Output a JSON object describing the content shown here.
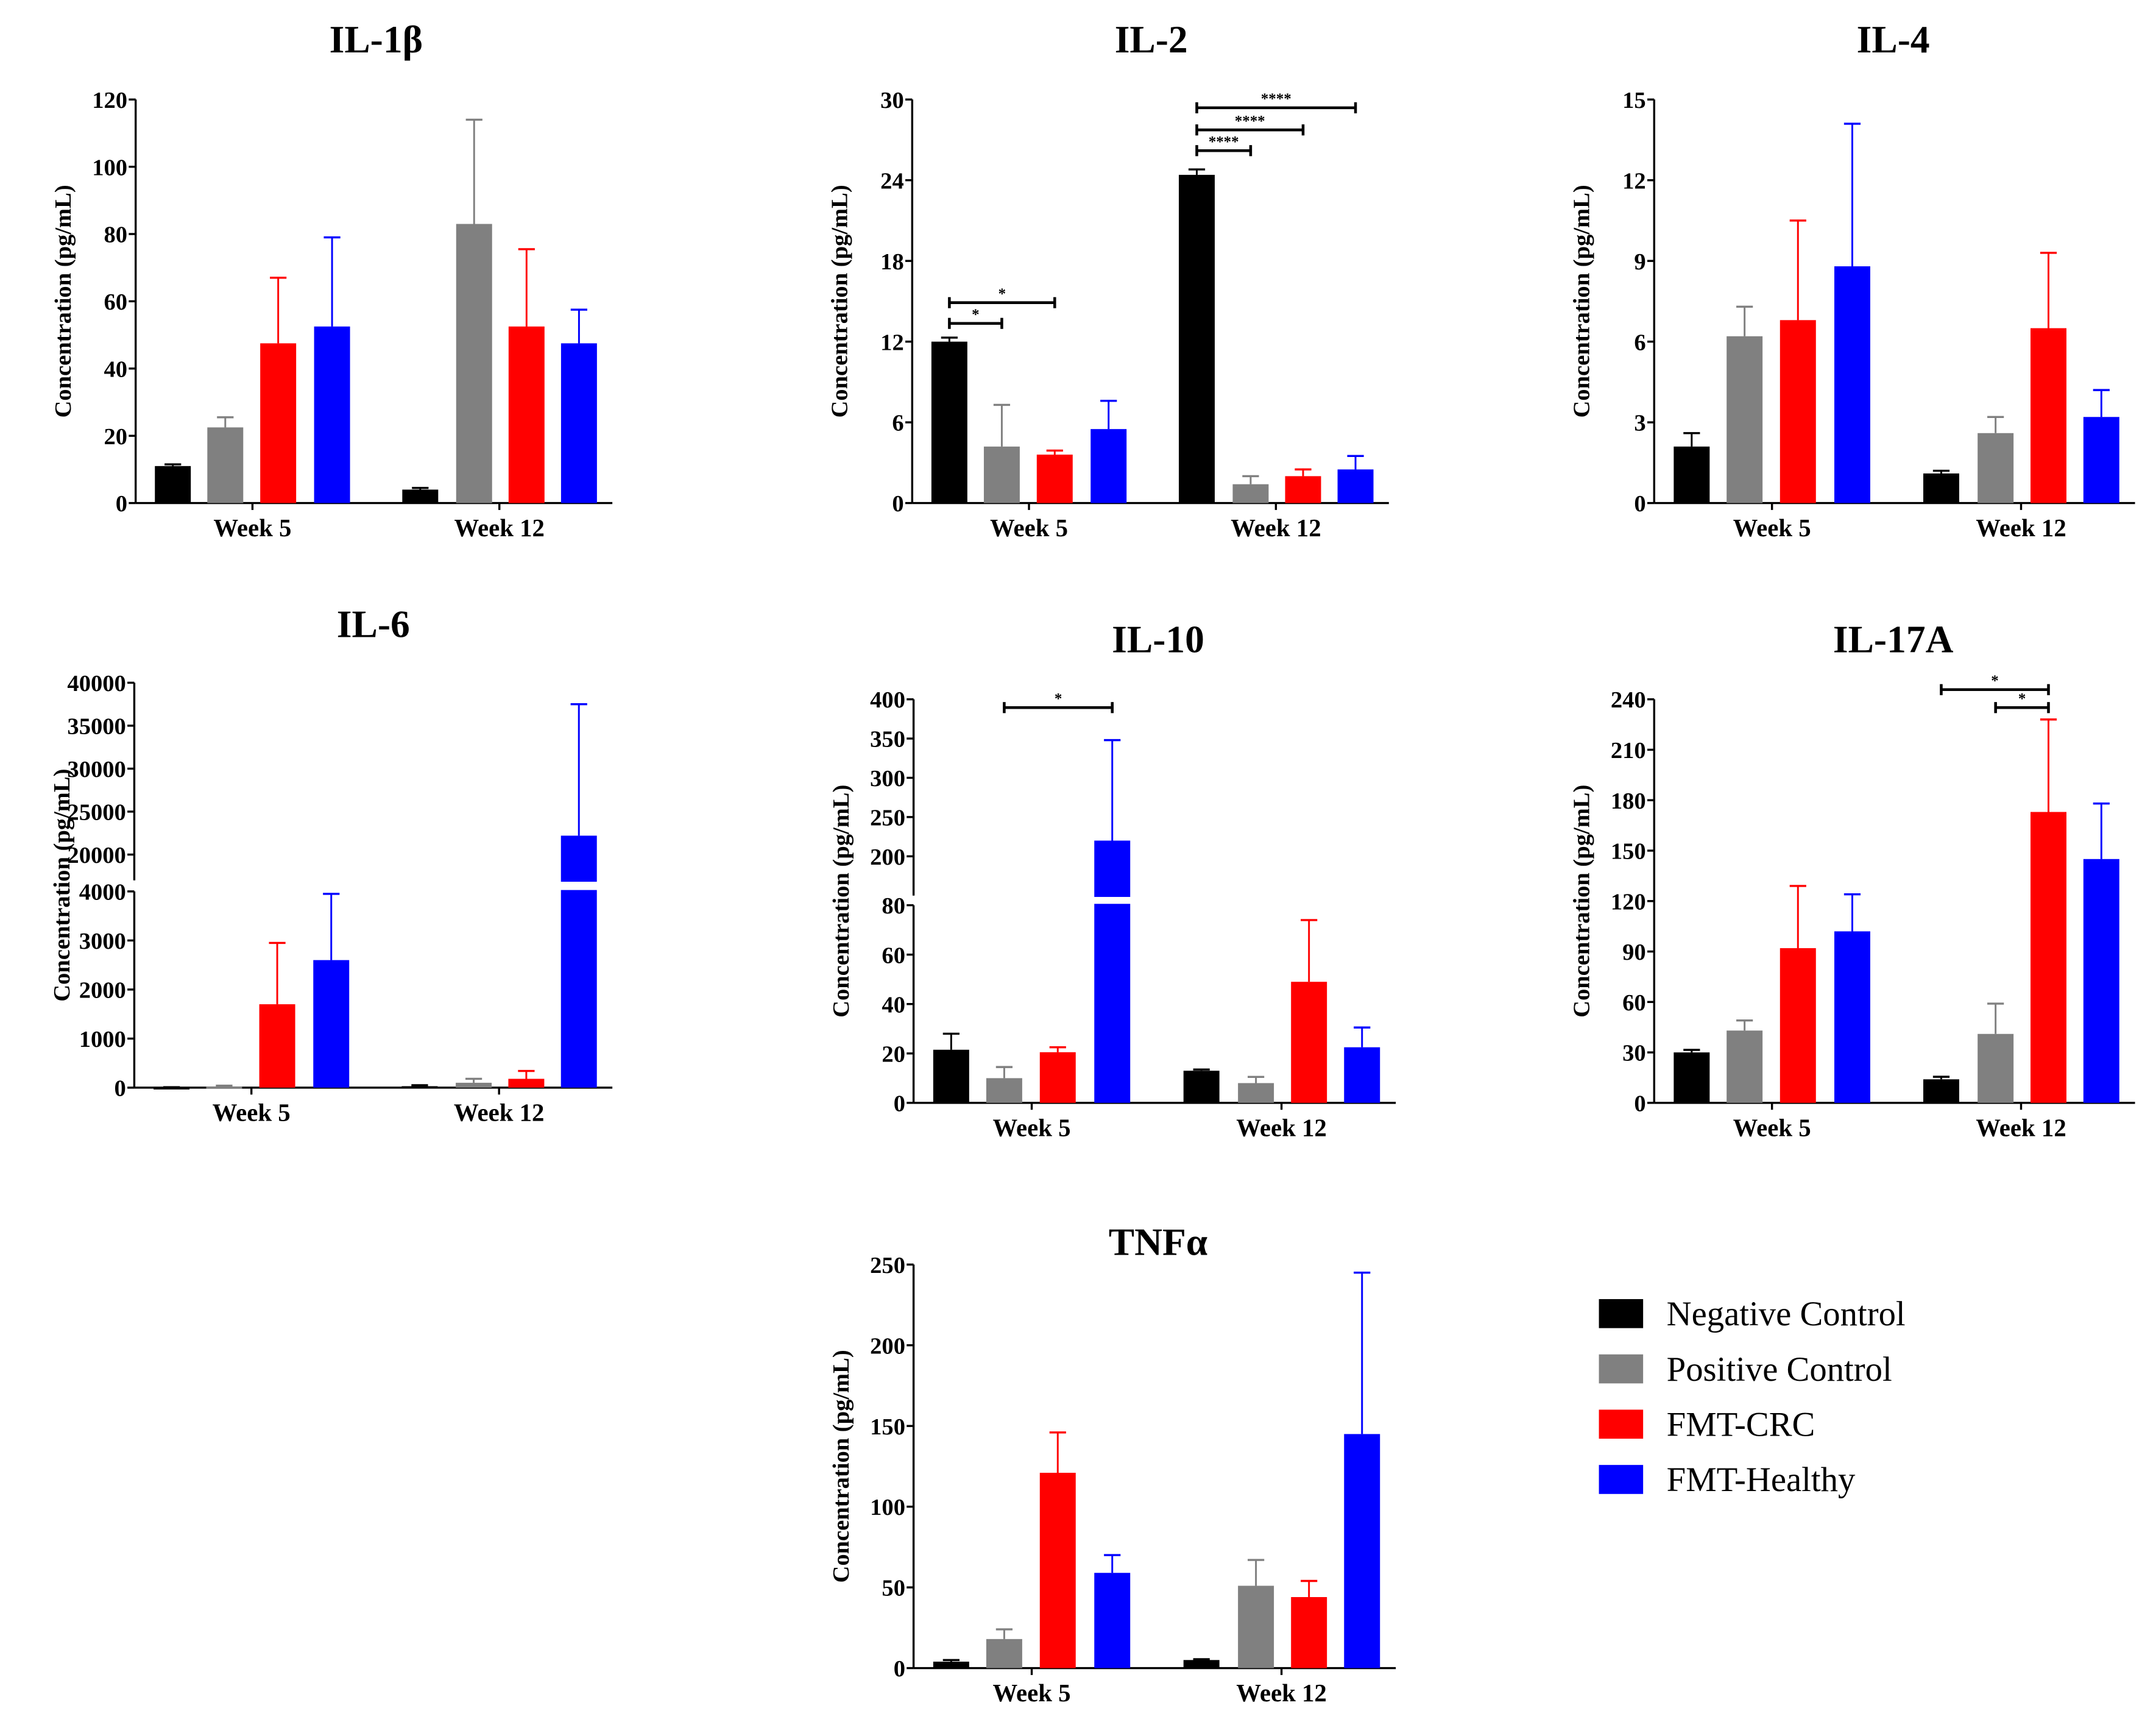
{
  "chart_data": {
    "type": "bar",
    "groups": [
      "Negative Control",
      "Positive Control",
      "FMT-CRC",
      "FMT-Healthy"
    ],
    "colors": {
      "Negative Control": "#000000",
      "Positive Control": "#808080",
      "FMT-CRC": "#ff0000",
      "FMT-Healthy": "#0000ff"
    },
    "categories": [
      "Week 5",
      "Week 12"
    ],
    "ylabel": "Concentration (pg/mL)",
    "legend": {
      "position": "bottom-right",
      "items": [
        "Negative Control",
        "Positive Control",
        "FMT-CRC",
        "FMT-Healthy"
      ]
    },
    "panels": [
      {
        "id": "il1b",
        "title": "IL-1β",
        "ylim": [
          0,
          120
        ],
        "ticks": [
          0,
          20,
          40,
          60,
          80,
          100,
          120
        ],
        "values": [
          [
            11,
            22.5,
            47.5,
            52.5
          ],
          [
            4,
            83,
            52.5,
            47.5
          ]
        ],
        "error_upper": [
          [
            11.5,
            25.5,
            67,
            79
          ],
          [
            4.5,
            114,
            75.5,
            57.5
          ]
        ],
        "significance": []
      },
      {
        "id": "il2",
        "title": "IL-2",
        "ylim": [
          0,
          30
        ],
        "ticks": [
          0,
          6,
          12,
          18,
          24,
          30
        ],
        "values": [
          [
            12,
            4.2,
            3.6,
            5.5
          ],
          [
            24.4,
            1.4,
            2.0,
            2.5
          ]
        ],
        "error_upper": [
          [
            12.3,
            7.3,
            3.9,
            7.6
          ],
          [
            24.8,
            2.0,
            2.5,
            3.5
          ]
        ],
        "significance": [
          {
            "category": "Week 5",
            "from": "Negative Control",
            "to": "Positive Control",
            "label": "*"
          },
          {
            "category": "Week 5",
            "from": "Negative Control",
            "to": "FMT-CRC",
            "label": "*"
          },
          {
            "category": "Week 12",
            "from": "Negative Control",
            "to": "Positive Control",
            "label": "****"
          },
          {
            "category": "Week 12",
            "from": "Negative Control",
            "to": "FMT-CRC",
            "label": "****"
          },
          {
            "category": "Week 12",
            "from": "Negative Control",
            "to": "FMT-Healthy",
            "label": "****"
          }
        ]
      },
      {
        "id": "il4",
        "title": "IL-4",
        "ylim": [
          0,
          15
        ],
        "ticks": [
          0,
          3,
          6,
          9,
          12,
          15
        ],
        "values": [
          [
            2.1,
            6.2,
            6.8,
            8.8
          ],
          [
            1.1,
            2.6,
            6.5,
            3.2
          ]
        ],
        "error_upper": [
          [
            2.6,
            7.3,
            10.5,
            14.1
          ],
          [
            1.2,
            3.2,
            9.3,
            4.2
          ]
        ],
        "significance": []
      },
      {
        "id": "il6",
        "title": "IL-6",
        "ylim": [
          0,
          40000
        ],
        "axis_break": [
          4000,
          17000
        ],
        "ticks": [
          0,
          1000,
          2000,
          3000,
          4000,
          20000,
          25000,
          30000,
          35000,
          40000
        ],
        "values": [
          [
            5,
            20,
            1700,
            2600
          ],
          [
            30,
            100,
            180,
            22200
          ]
        ],
        "error_upper": [
          [
            10,
            40,
            2950,
            3950
          ],
          [
            50,
            180,
            340,
            37500
          ]
        ],
        "significance": []
      },
      {
        "id": "il10",
        "title": "IL-10",
        "ylim": [
          0,
          400
        ],
        "axis_break": [
          80,
          150
        ],
        "ticks": [
          0,
          20,
          40,
          60,
          80,
          200,
          250,
          300,
          350,
          400
        ],
        "values": [
          [
            21.5,
            10,
            20.5,
            220
          ],
          [
            13,
            8,
            49,
            22.5
          ]
        ],
        "error_upper": [
          [
            28,
            14.5,
            22.5,
            348
          ],
          [
            13.5,
            10.5,
            74,
            30.5
          ]
        ],
        "significance": [
          {
            "category": "Week 5",
            "from": "Positive Control",
            "to": "FMT-Healthy",
            "label": "*"
          }
        ]
      },
      {
        "id": "il17a",
        "title": "IL-17A",
        "ylim": [
          0,
          240
        ],
        "ticks": [
          0,
          30,
          60,
          90,
          120,
          150,
          180,
          210,
          240
        ],
        "values": [
          [
            30,
            43,
            92,
            102
          ],
          [
            14,
            41,
            173,
            145
          ]
        ],
        "error_upper": [
          [
            31.5,
            49,
            129,
            124
          ],
          [
            15.5,
            59,
            228,
            178
          ]
        ],
        "significance": [
          {
            "category": "Week 12",
            "from": "Positive Control",
            "to": "FMT-CRC",
            "label": "*"
          },
          {
            "category": "Week 12",
            "from": "Negative Control",
            "to": "FMT-CRC",
            "label": "*"
          }
        ]
      },
      {
        "id": "tnfa",
        "title": "TNFα",
        "ylim": [
          0,
          250
        ],
        "ticks": [
          0,
          50,
          100,
          150,
          200,
          250
        ],
        "values": [
          [
            4,
            18,
            121,
            59
          ],
          [
            5,
            51,
            44,
            145
          ]
        ],
        "error_upper": [
          [
            5,
            24,
            146,
            70
          ],
          [
            5.5,
            67,
            54,
            245
          ]
        ],
        "significance": []
      }
    ]
  }
}
